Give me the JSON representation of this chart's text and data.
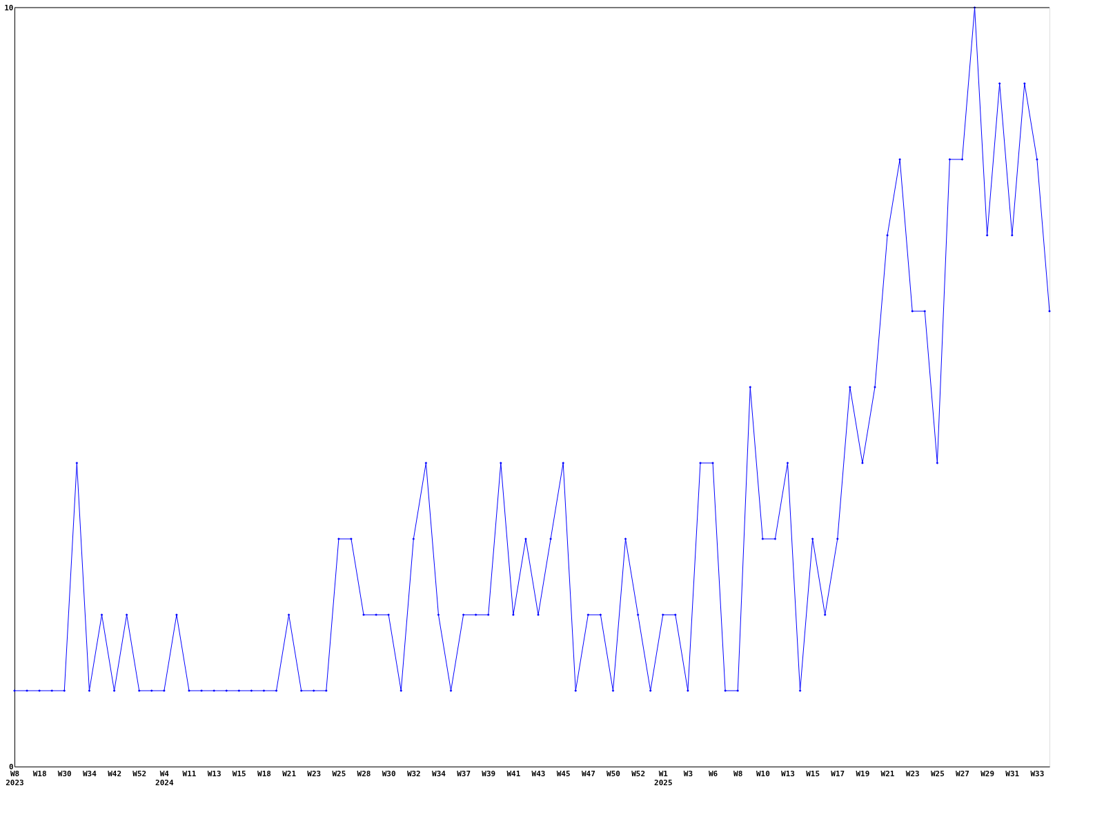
{
  "chart_data": {
    "type": "line",
    "marker": "diamond",
    "grid": false,
    "legend": false,
    "categories": [
      "W8\n2023",
      null,
      "W18",
      null,
      "W30",
      null,
      "W34",
      null,
      "W42",
      null,
      "W52",
      null,
      "W4\n2024",
      null,
      "W11",
      null,
      "W13",
      null,
      "W15",
      null,
      "W18",
      null,
      "W21",
      null,
      "W23",
      null,
      "W25",
      null,
      "W28",
      null,
      "W30",
      null,
      "W32",
      null,
      "W34",
      null,
      "W37",
      null,
      "W39",
      null,
      "W41",
      null,
      "W43",
      null,
      "W45",
      null,
      "W47",
      null,
      "W50",
      null,
      "W52",
      null,
      "W1\n2025",
      null,
      "W3",
      null,
      "W6",
      null,
      "W8",
      null,
      "W10",
      null,
      "W13",
      null,
      "W15",
      null,
      "W17",
      null,
      "W19",
      null,
      "W21",
      null,
      "W23",
      null,
      "W25",
      null,
      "W27",
      null,
      "W29",
      null,
      "W31",
      null,
      "W33",
      null
    ],
    "series": [
      {
        "color": "#0000ff",
        "values": [
          1,
          1,
          1,
          1,
          1,
          4,
          1,
          2,
          1,
          2,
          1,
          1,
          1,
          2,
          1,
          1,
          1,
          1,
          1,
          1,
          1,
          1,
          2,
          1,
          1,
          1,
          3,
          3,
          2,
          2,
          2,
          1,
          3,
          4,
          2,
          1,
          2,
          2,
          2,
          4,
          2,
          3,
          2,
          3,
          4,
          1,
          2,
          2,
          1,
          3,
          2,
          1,
          2,
          2,
          1,
          4,
          4,
          1,
          1,
          5,
          3,
          3,
          4,
          1,
          3,
          2,
          3,
          5,
          4,
          5,
          7,
          8,
          6,
          6,
          4,
          8,
          8,
          10,
          7,
          9,
          7,
          9,
          8,
          6
        ]
      }
    ],
    "ylim": [
      0,
      10
    ],
    "yticks": [
      0,
      10
    ]
  }
}
